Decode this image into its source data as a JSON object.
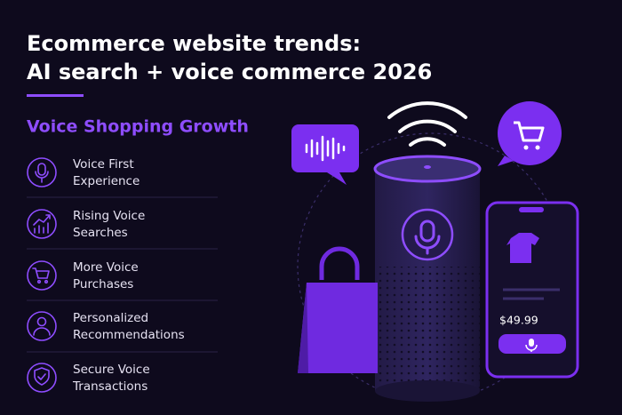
{
  "header": {
    "title_lines": [
      "Ecommerce website trends:",
      "AI search + voice commerce 2026"
    ]
  },
  "section": {
    "title": "Voice Shopping Growth",
    "items": [
      {
        "lines": [
          "Voice First",
          "Experience"
        ]
      },
      {
        "lines": [
          "Rising Voice",
          "Searches"
        ]
      },
      {
        "lines": [
          "More Voice",
          "Purchases"
        ]
      },
      {
        "lines": [
          "Personalized",
          "Recommendations"
        ]
      },
      {
        "lines": [
          "Secure Voice",
          "Transactions"
        ]
      }
    ]
  },
  "phone": {
    "price": "$49.99"
  }
}
